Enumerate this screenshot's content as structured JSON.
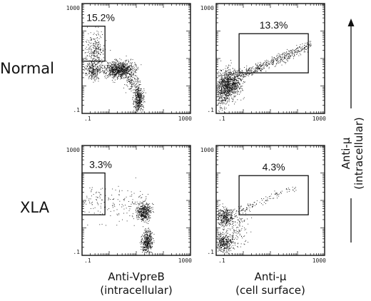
{
  "rows": [
    {
      "label": "Normal"
    },
    {
      "label": "XLA"
    }
  ],
  "columns": [
    {
      "xlabel_line1": "Anti-VpreB",
      "xlabel_line2": "(intracellular)"
    },
    {
      "xlabel_line1": "Anti-μ",
      "xlabel_line2": "(cell surface)"
    }
  ],
  "ylabel": {
    "line1": "Anti-μ",
    "line2": "(intracellular)"
  },
  "chart_data": [
    {
      "type": "scatter",
      "row": "Normal",
      "xlabel": "Anti-VpreB (intracellular)",
      "ylabel": "Anti-μ (intracellular)",
      "scale": "log",
      "xlim": [
        0.1,
        1000
      ],
      "ylim": [
        0.1,
        1000
      ],
      "x_tick_labels": [
        ".1",
        "1000"
      ],
      "y_tick_labels": [
        ".1",
        "1000"
      ],
      "gate": {
        "label": "15.2%",
        "x": [
          0.1,
          0.7
        ],
        "y": [
          8,
          150
        ]
      }
    },
    {
      "type": "scatter",
      "row": "Normal",
      "xlabel": "Anti-μ (cell surface)",
      "ylabel": "Anti-μ (intracellular)",
      "scale": "log",
      "xlim": [
        0.1,
        1000
      ],
      "ylim": [
        0.1,
        1000
      ],
      "x_tick_labels": [
        ".1",
        "1000"
      ],
      "y_tick_labels": [
        ".1",
        "1000"
      ],
      "gate": {
        "label": "13.3%",
        "x": [
          0.7,
          250
        ],
        "y": [
          3,
          80
        ]
      }
    },
    {
      "type": "scatter",
      "row": "XLA",
      "xlabel": "Anti-VpreB (intracellular)",
      "ylabel": "Anti-μ (intracellular)",
      "scale": "log",
      "xlim": [
        0.1,
        1000
      ],
      "ylim": [
        0.1,
        1000
      ],
      "x_tick_labels": [
        ".1",
        "1000"
      ],
      "y_tick_labels": [
        ".1",
        "1000"
      ],
      "gate": {
        "label": "3.3%",
        "x": [
          0.1,
          0.7
        ],
        "y": [
          3,
          100
        ]
      }
    },
    {
      "type": "scatter",
      "row": "XLA",
      "xlabel": "Anti-μ (cell surface)",
      "ylabel": "Anti-μ (intracellular)",
      "scale": "log",
      "xlim": [
        0.1,
        1000
      ],
      "ylim": [
        0.1,
        1000
      ],
      "x_tick_labels": [
        ".1",
        "1000"
      ],
      "y_tick_labels": [
        ".1",
        "1000"
      ],
      "gate": {
        "label": "4.3%",
        "x": [
          0.7,
          250
        ],
        "y": [
          3,
          80
        ]
      }
    }
  ]
}
